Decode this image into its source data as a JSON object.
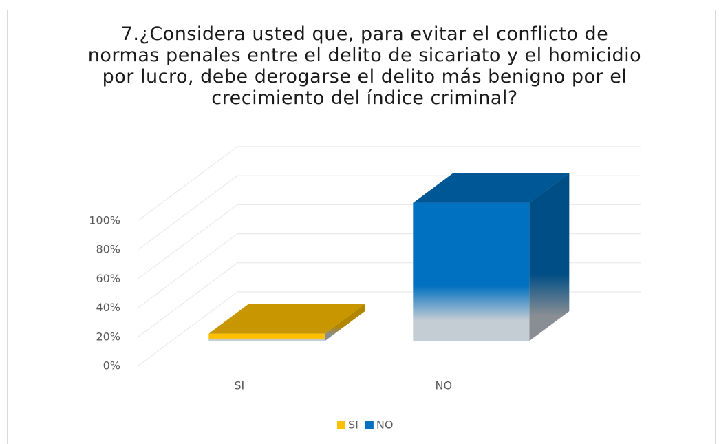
{
  "chart_data": {
    "type": "bar3d",
    "title": "7.¿Considera usted que, para evitar el conflicto de normas penales entre el delito de sicariato y el homicidio por lucro, debe derogarse el delito más benigno por el crecimiento del índice criminal?",
    "categories": [
      "SI",
      "NO"
    ],
    "series": [
      {
        "name": "SI",
        "color": "#ffc000",
        "values": [
          5,
          null
        ]
      },
      {
        "name": "NO",
        "color": "#0070c0",
        "values": [
          null,
          95
        ]
      }
    ],
    "ylim": [
      0,
      100
    ],
    "yticks": [
      {
        "value": 0,
        "label": "0%"
      },
      {
        "value": 20,
        "label": "20%"
      },
      {
        "value": 40,
        "label": "40%"
      },
      {
        "value": 60,
        "label": "60%"
      },
      {
        "value": 80,
        "label": "80%"
      },
      {
        "value": 100,
        "label": "100%"
      }
    ],
    "grid": true,
    "legend": "bottom"
  }
}
